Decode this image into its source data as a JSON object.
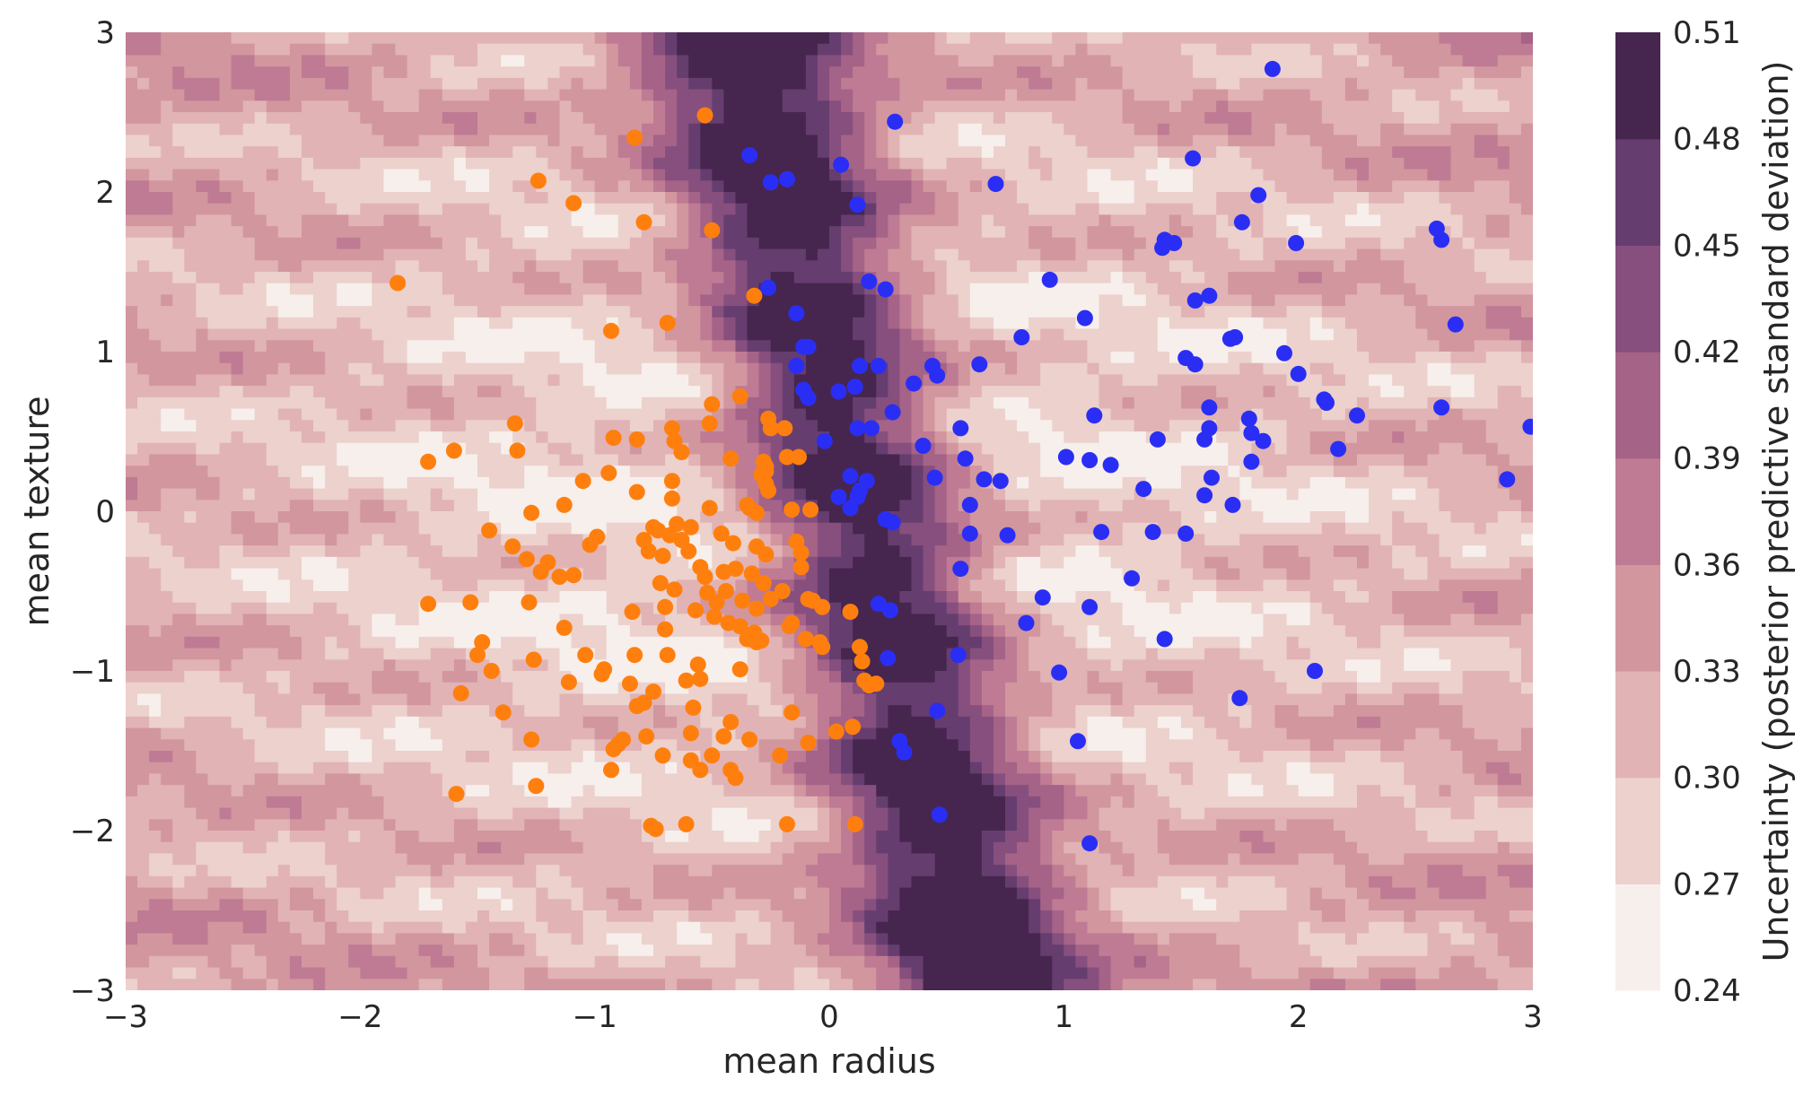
{
  "chart_data": {
    "type": "contour-scatter",
    "xlabel": "mean radius",
    "ylabel": "mean texture",
    "xlim": [
      -3,
      3
    ],
    "ylim": [
      -3,
      3
    ],
    "xticks": [
      -3,
      -2,
      -1,
      0,
      1,
      2,
      3
    ],
    "yticks": [
      -3,
      -2,
      -1,
      0,
      1,
      2,
      3
    ],
    "xtick_labels": [
      "−3",
      "−2",
      "−1",
      "0",
      "1",
      "2",
      "3"
    ],
    "ytick_labels": [
      "−3",
      "−2",
      "−1",
      "0",
      "1",
      "2",
      "3"
    ],
    "grid": false,
    "colorbar": {
      "label": "Uncertainty (posterior predictive standard deviation)",
      "levels": [
        0.24,
        0.27,
        0.3,
        0.33,
        0.36,
        0.39,
        0.42,
        0.45,
        0.48,
        0.51
      ],
      "tick_labels": [
        "0.24",
        "0.27",
        "0.30",
        "0.33",
        "0.36",
        "0.39",
        "0.42",
        "0.45",
        "0.48",
        "0.51"
      ],
      "colors": [
        "#f7efec",
        "#ecd1cd",
        "#e1b3b5",
        "#d2969f",
        "#bf7b93",
        "#a46387",
        "#864f7e",
        "#663d6f",
        "#46264f"
      ]
    },
    "series": [
      {
        "color": "#ff7f0e",
        "points": [
          [
            -0.53,
            2.48
          ],
          [
            -0.83,
            2.34
          ],
          [
            -1.24,
            2.07
          ],
          [
            -1.09,
            1.93
          ],
          [
            -0.79,
            1.81
          ],
          [
            -0.5,
            1.76
          ],
          [
            -1.84,
            1.43
          ],
          [
            -0.32,
            1.35
          ],
          [
            -0.69,
            1.18
          ],
          [
            -0.93,
            1.13
          ],
          [
            -0.5,
            0.67
          ],
          [
            -0.38,
            0.72
          ],
          [
            -0.26,
            0.58
          ],
          [
            -0.19,
            0.52
          ],
          [
            -0.51,
            0.55
          ],
          [
            -0.25,
            0.52
          ],
          [
            -1.34,
            0.55
          ],
          [
            -1.6,
            0.38
          ],
          [
            -1.33,
            0.38
          ],
          [
            -0.92,
            0.46
          ],
          [
            -0.67,
            0.52
          ],
          [
            -0.66,
            0.44
          ],
          [
            -0.63,
            0.37
          ],
          [
            -0.42,
            0.33
          ],
          [
            -0.28,
            0.31
          ],
          [
            -0.27,
            0.28
          ],
          [
            -0.29,
            0.23
          ],
          [
            -0.18,
            0.34
          ],
          [
            -0.13,
            0.34
          ],
          [
            -1.71,
            0.31
          ],
          [
            -1.05,
            0.19
          ],
          [
            -0.94,
            0.24
          ],
          [
            -0.82,
            0.45
          ],
          [
            -0.67,
            0.19
          ],
          [
            -0.27,
            0.25
          ],
          [
            -0.27,
            0.17
          ],
          [
            -0.26,
            0.13
          ],
          [
            -1.13,
            0.04
          ],
          [
            -1.27,
            -0.01
          ],
          [
            -1.45,
            -0.12
          ],
          [
            -0.82,
            0.12
          ],
          [
            -0.67,
            0.08
          ],
          [
            -0.51,
            0.02
          ],
          [
            -0.31,
            -0.01
          ],
          [
            -0.34,
            0.02
          ],
          [
            -0.16,
            0.01
          ],
          [
            -0.08,
            0.01
          ],
          [
            -0.75,
            -0.1
          ],
          [
            -0.68,
            -0.15
          ],
          [
            -0.63,
            -0.18
          ],
          [
            -0.73,
            -0.12
          ],
          [
            -0.65,
            -0.08
          ],
          [
            -0.59,
            -0.1
          ],
          [
            -0.46,
            -0.14
          ],
          [
            -0.41,
            -0.2
          ],
          [
            -0.31,
            -0.22
          ],
          [
            -0.27,
            -0.27
          ],
          [
            -0.14,
            -0.19
          ],
          [
            -0.12,
            -0.26
          ],
          [
            -0.99,
            -0.16
          ],
          [
            -1.02,
            -0.21
          ],
          [
            -1.35,
            -0.22
          ],
          [
            -1.29,
            -0.3
          ],
          [
            -1.2,
            -0.32
          ],
          [
            -1.15,
            -0.41
          ],
          [
            -1.23,
            -0.38
          ],
          [
            -1.09,
            -0.4
          ],
          [
            -0.79,
            -0.18
          ],
          [
            -0.77,
            -0.25
          ],
          [
            -0.71,
            -0.28
          ],
          [
            -0.6,
            -0.25
          ],
          [
            -0.55,
            -0.35
          ],
          [
            -0.53,
            -0.41
          ],
          [
            -0.45,
            -0.38
          ],
          [
            -0.4,
            -0.36
          ],
          [
            -0.33,
            -0.39
          ],
          [
            -0.28,
            -0.45
          ],
          [
            -0.2,
            -0.5
          ],
          [
            -0.12,
            -0.35
          ],
          [
            -0.72,
            -0.45
          ],
          [
            -0.66,
            -0.49
          ],
          [
            -0.52,
            -0.51
          ],
          [
            -0.48,
            -0.57
          ],
          [
            -0.44,
            -0.5
          ],
          [
            -0.37,
            -0.56
          ],
          [
            -0.31,
            -0.61
          ],
          [
            -0.25,
            -0.55
          ],
          [
            -0.09,
            -0.55
          ],
          [
            -0.07,
            -0.56
          ],
          [
            -0.7,
            -0.6
          ],
          [
            -0.84,
            -0.63
          ],
          [
            -0.57,
            -0.62
          ],
          [
            -0.49,
            -0.66
          ],
          [
            -0.43,
            -0.7
          ],
          [
            -0.38,
            -0.72
          ],
          [
            -0.32,
            -0.76
          ],
          [
            -0.29,
            -0.81
          ],
          [
            -0.16,
            -0.7
          ],
          [
            -0.03,
            -0.6
          ],
          [
            0.09,
            -0.63
          ],
          [
            -1.28,
            -0.57
          ],
          [
            -1.53,
            -0.57
          ],
          [
            -1.71,
            -0.58
          ],
          [
            -1.13,
            -0.73
          ],
          [
            -0.7,
            -0.74
          ],
          [
            -0.35,
            -0.8
          ],
          [
            -0.31,
            -0.82
          ],
          [
            -0.17,
            -0.72
          ],
          [
            -0.1,
            -0.8
          ],
          [
            -0.03,
            -0.85
          ],
          [
            -1.48,
            -0.82
          ],
          [
            -1.5,
            -0.9
          ],
          [
            -1.26,
            -0.93
          ],
          [
            -1.04,
            -0.9
          ],
          [
            -0.96,
            -0.99
          ],
          [
            -0.83,
            -0.9
          ],
          [
            -0.69,
            -0.9
          ],
          [
            -0.56,
            -0.96
          ],
          [
            -0.38,
            -0.99
          ],
          [
            -0.04,
            -0.82
          ],
          [
            0.13,
            -0.85
          ],
          [
            0.14,
            -0.94
          ],
          [
            -1.11,
            -1.07
          ],
          [
            -1.44,
            -1.0
          ],
          [
            -0.97,
            -1.02
          ],
          [
            -0.85,
            -1.08
          ],
          [
            -0.75,
            -1.13
          ],
          [
            -0.61,
            -1.06
          ],
          [
            -0.55,
            -1.05
          ],
          [
            0.15,
            -1.06
          ],
          [
            0.2,
            -1.08
          ],
          [
            0.17,
            -1.09
          ],
          [
            -1.57,
            -1.14
          ],
          [
            -0.82,
            -1.22
          ],
          [
            -0.79,
            -1.2
          ],
          [
            -0.58,
            -1.23
          ],
          [
            -0.42,
            -1.32
          ],
          [
            -0.34,
            -1.43
          ],
          [
            -0.16,
            -1.26
          ],
          [
            -1.39,
            -1.26
          ],
          [
            -0.88,
            -1.43
          ],
          [
            -0.78,
            -1.41
          ],
          [
            -0.59,
            -1.39
          ],
          [
            -0.45,
            -1.41
          ],
          [
            -0.21,
            -1.53
          ],
          [
            -0.09,
            -1.45
          ],
          [
            0.03,
            -1.38
          ],
          [
            0.1,
            -1.35
          ],
          [
            -1.27,
            -1.43
          ],
          [
            -0.92,
            -1.49
          ],
          [
            -0.9,
            -1.46
          ],
          [
            -0.71,
            -1.53
          ],
          [
            -0.59,
            -1.56
          ],
          [
            -0.5,
            -1.53
          ],
          [
            -0.55,
            -1.62
          ],
          [
            -0.42,
            -1.62
          ],
          [
            -0.4,
            -1.67
          ],
          [
            -0.93,
            -1.62
          ],
          [
            -1.59,
            -1.77
          ],
          [
            -1.25,
            -1.72
          ],
          [
            -0.76,
            -1.97
          ],
          [
            -0.74,
            -1.99
          ],
          [
            -0.61,
            -1.96
          ],
          [
            -0.18,
            -1.96
          ],
          [
            0.11,
            -1.96
          ],
          [
            -0.35,
            0.04
          ]
        ]
      },
      {
        "color": "#2a2ef4",
        "points": [
          [
            0.28,
            2.44
          ],
          [
            0.05,
            2.17
          ],
          [
            -0.34,
            2.23
          ],
          [
            -0.18,
            2.08
          ],
          [
            -0.25,
            2.06
          ],
          [
            0.12,
            1.92
          ],
          [
            0.17,
            1.44
          ],
          [
            0.24,
            1.39
          ],
          [
            -0.26,
            1.4
          ],
          [
            -0.14,
            1.24
          ],
          [
            -0.11,
            1.03
          ],
          [
            -0.09,
            1.03
          ],
          [
            -0.14,
            0.91
          ],
          [
            -0.11,
            0.76
          ],
          [
            -0.09,
            0.71
          ],
          [
            0.04,
            0.75
          ],
          [
            0.11,
            0.78
          ],
          [
            0.21,
            0.91
          ],
          [
            0.13,
            0.91
          ],
          [
            0.46,
            0.85
          ],
          [
            0.44,
            0.91
          ],
          [
            0.36,
            0.8
          ],
          [
            0.12,
            0.52
          ],
          [
            0.18,
            0.52
          ],
          [
            0.27,
            0.62
          ],
          [
            0.56,
            0.52
          ],
          [
            0.64,
            0.92
          ],
          [
            0.58,
            0.33
          ],
          [
            -0.02,
            0.44
          ],
          [
            0.09,
            0.22
          ],
          [
            0.12,
            0.09
          ],
          [
            0.13,
            0.13
          ],
          [
            0.16,
            0.19
          ],
          [
            0.04,
            0.09
          ],
          [
            0.09,
            0.02
          ],
          [
            0.24,
            -0.05
          ],
          [
            0.27,
            -0.07
          ],
          [
            0.45,
            0.21
          ],
          [
            0.4,
            0.41
          ],
          [
            0.6,
            0.04
          ],
          [
            0.6,
            -0.14
          ],
          [
            0.66,
            0.2
          ],
          [
            0.73,
            0.19
          ],
          [
            0.76,
            -0.15
          ],
          [
            0.56,
            -0.36
          ],
          [
            0.84,
            -0.7
          ],
          [
            0.91,
            -0.54
          ],
          [
            0.98,
            -1.01
          ],
          [
            0.21,
            -0.58
          ],
          [
            0.26,
            -0.62
          ],
          [
            0.25,
            -0.92
          ],
          [
            0.46,
            -1.25
          ],
          [
            0.55,
            -0.9
          ],
          [
            0.3,
            -1.44
          ],
          [
            0.32,
            -1.51
          ],
          [
            0.47,
            -1.9
          ],
          [
            1.06,
            -1.44
          ],
          [
            1.11,
            -2.08
          ],
          [
            1.11,
            -0.6
          ],
          [
            1.29,
            -0.42
          ],
          [
            1.43,
            -0.8
          ],
          [
            1.75,
            -1.17
          ],
          [
            2.07,
            -1.0
          ],
          [
            0.71,
            2.05
          ],
          [
            0.94,
            1.45
          ],
          [
            1.09,
            1.21
          ],
          [
            1.13,
            0.6
          ],
          [
            1.01,
            0.34
          ],
          [
            1.11,
            0.32
          ],
          [
            1.2,
            0.29
          ],
          [
            1.16,
            -0.13
          ],
          [
            1.34,
            0.14
          ],
          [
            1.4,
            0.45
          ],
          [
            1.38,
            -0.13
          ],
          [
            1.52,
            -0.14
          ],
          [
            1.42,
            1.65
          ],
          [
            1.43,
            1.7
          ],
          [
            1.47,
            1.68
          ],
          [
            1.52,
            0.96
          ],
          [
            1.56,
            0.92
          ],
          [
            1.55,
            2.21
          ],
          [
            1.56,
            1.32
          ],
          [
            1.62,
            1.35
          ],
          [
            1.62,
            0.65
          ],
          [
            1.62,
            0.52
          ],
          [
            1.6,
            0.45
          ],
          [
            1.63,
            0.21
          ],
          [
            1.6,
            0.1
          ],
          [
            1.71,
            1.08
          ],
          [
            1.73,
            1.09
          ],
          [
            1.72,
            0.04
          ],
          [
            1.76,
            1.81
          ],
          [
            1.79,
            0.58
          ],
          [
            1.8,
            0.49
          ],
          [
            1.83,
            1.98
          ],
          [
            1.85,
            0.44
          ],
          [
            1.8,
            0.31
          ],
          [
            1.89,
            2.77
          ],
          [
            1.94,
            0.99
          ],
          [
            1.99,
            1.68
          ],
          [
            2.0,
            0.86
          ],
          [
            2.11,
            0.7
          ],
          [
            2.12,
            0.68
          ],
          [
            2.17,
            0.39
          ],
          [
            2.25,
            0.6
          ],
          [
            2.59,
            1.77
          ],
          [
            2.61,
            1.7
          ],
          [
            2.67,
            1.17
          ],
          [
            2.61,
            0.65
          ],
          [
            2.89,
            0.2
          ],
          [
            2.99,
            0.53
          ],
          [
            0.82,
            1.09
          ]
        ]
      }
    ]
  }
}
